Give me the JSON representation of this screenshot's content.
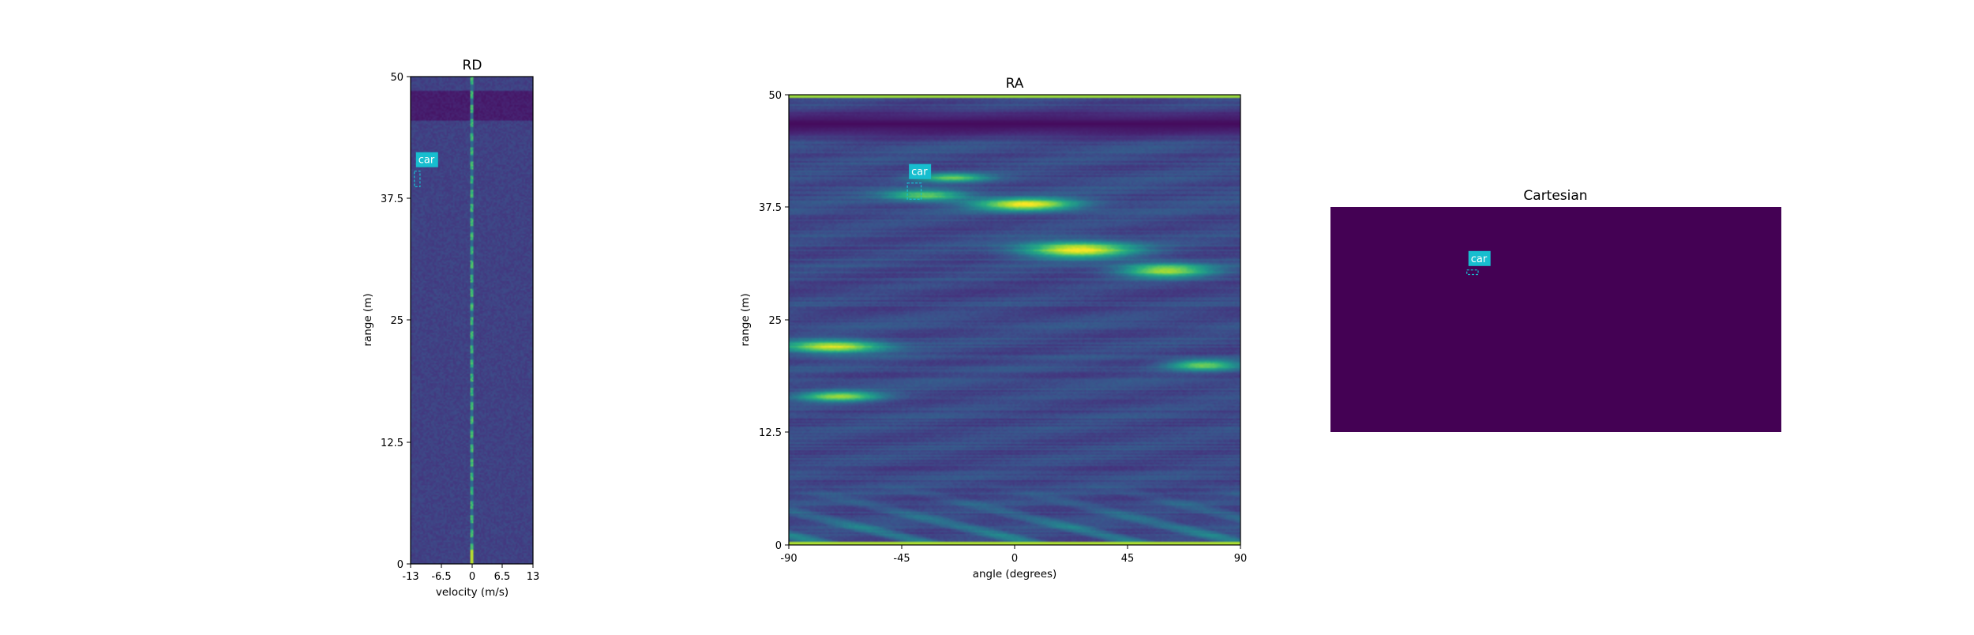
{
  "colors": {
    "colormap": "viridis",
    "detection": "#17becf"
  },
  "chart_data": [
    {
      "title": "RD",
      "type": "heatmap",
      "xlabel": "velocity (m/s)",
      "ylabel": "range (m)",
      "xlim": [
        -13,
        13
      ],
      "ylim": [
        0,
        50
      ],
      "xticks": [
        "-13",
        "-6.5",
        "0",
        "6.5",
        "13"
      ],
      "yticks": [
        "0",
        "12.5",
        "25",
        "37.5",
        "50"
      ],
      "heatmap": {
        "base_level": 0.2,
        "noise": 0.035,
        "dark_band_range": [
          45.5,
          48.5
        ],
        "dark_band_level": 0.06,
        "zero_doppler_line": {
          "velocity": 0,
          "level": 0.6
        }
      },
      "detections": [
        {
          "label": "car",
          "velocity": -11.6,
          "range": 39.5,
          "width": 1.2,
          "height": 1.6
        }
      ]
    },
    {
      "title": "RA",
      "type": "heatmap",
      "xlabel": "angle (degrees)",
      "ylabel": "range (m)",
      "xlim": [
        -90,
        90
      ],
      "ylim": [
        0,
        50
      ],
      "xticks": [
        "-90",
        "-45",
        "0",
        "45",
        "90"
      ],
      "yticks": [
        "0",
        "12.5",
        "25",
        "37.5",
        "50"
      ],
      "heatmap": {
        "base_level": 0.23,
        "noise": 0.04,
        "dark_band_range": [
          44.5,
          49
        ],
        "dark_band_level": 0.03,
        "edge_line_range": [
          49.6,
          50
        ],
        "bottom_line_range": [
          0,
          0.4
        ],
        "near_clutter_range": [
          0,
          7
        ],
        "hotspots": [
          {
            "angle": 5,
            "range": 37.8,
            "width": 20,
            "height": 0.7,
            "level": 0.75
          },
          {
            "angle": 25,
            "range": 32.8,
            "width": 22,
            "height": 0.9,
            "level": 0.8
          },
          {
            "angle": 60,
            "range": 30.5,
            "width": 18,
            "height": 0.8,
            "level": 0.65
          },
          {
            "angle": -72,
            "range": 22,
            "width": 20,
            "height": 0.7,
            "level": 0.75
          },
          {
            "angle": -70,
            "range": 16.5,
            "width": 16,
            "height": 0.6,
            "level": 0.6
          },
          {
            "angle": 75,
            "range": 20,
            "width": 14,
            "height": 0.6,
            "level": 0.55
          },
          {
            "angle": -35,
            "range": 38.8,
            "width": 16,
            "height": 0.6,
            "level": 0.55
          },
          {
            "angle": -25,
            "range": 40.8,
            "width": 14,
            "height": 0.5,
            "level": 0.5
          }
        ]
      },
      "detections": [
        {
          "label": "car",
          "angle": -40,
          "range": 39.3,
          "width": 5.5,
          "height": 1.8
        }
      ]
    },
    {
      "title": "Cartesian",
      "type": "heatmap",
      "fill_level": 0,
      "detections": [
        {
          "label": "car",
          "x_frac": 0.315,
          "y_frac": 0.29,
          "w_frac": 0.025,
          "h_frac": 0.02
        }
      ]
    }
  ]
}
